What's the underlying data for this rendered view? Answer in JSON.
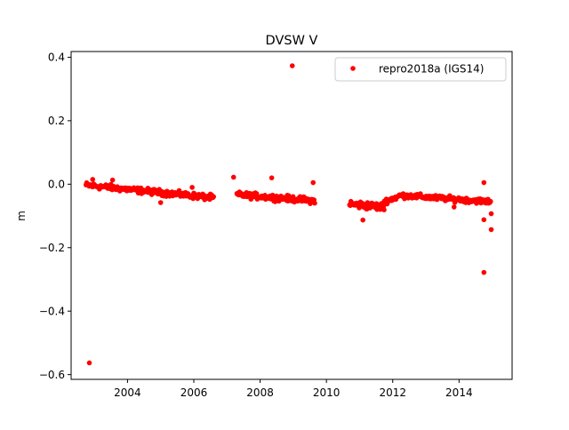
{
  "chart_data": {
    "type": "scatter",
    "title": "DVSW V",
    "xlabel": "",
    "ylabel": "m",
    "xlim": [
      2002.3,
      2015.6
    ],
    "ylim": [
      -0.615,
      0.418
    ],
    "xticks": [
      2004,
      2006,
      2008,
      2010,
      2012,
      2014
    ],
    "xtick_labels": [
      "2004",
      "2006",
      "2008",
      "2010",
      "2012",
      "2014"
    ],
    "yticks": [
      -0.6,
      -0.4,
      -0.2,
      0.0,
      0.2,
      0.4
    ],
    "ytick_labels": [
      "−0.6",
      "−0.4",
      "−0.2",
      "0.0",
      "0.2",
      "0.4"
    ],
    "grid": false,
    "legend_position": "top-right",
    "series": [
      {
        "name": "repro2018a (IGS14)",
        "color": "#ff0000",
        "marker": "circle",
        "segments": [
          {
            "x_start": 2002.75,
            "x_end": 2006.6,
            "y_start": -0.003,
            "y_end": -0.043,
            "spread": 0.009
          },
          {
            "x_start": 2007.3,
            "x_end": 2009.65,
            "y_start": -0.033,
            "y_end": -0.052,
            "spread": 0.009
          },
          {
            "x_start": 2010.7,
            "x_end": 2011.75,
            "y_start": -0.063,
            "y_end": -0.072,
            "spread": 0.012
          },
          {
            "x_start": 2011.75,
            "x_end": 2012.2,
            "y_start": -0.055,
            "y_end": -0.038,
            "spread": 0.008
          },
          {
            "x_start": 2012.2,
            "x_end": 2014.95,
            "y_start": -0.035,
            "y_end": -0.055,
            "spread": 0.008
          }
        ],
        "outliers": [
          {
            "x": 2002.85,
            "y": -0.563
          },
          {
            "x": 2008.97,
            "y": 0.373
          },
          {
            "x": 2007.2,
            "y": 0.022
          },
          {
            "x": 2008.35,
            "y": 0.02
          },
          {
            "x": 2009.6,
            "y": 0.005
          },
          {
            "x": 2005.95,
            "y": -0.01
          },
          {
            "x": 2011.1,
            "y": -0.113
          },
          {
            "x": 2014.75,
            "y": 0.005
          },
          {
            "x": 2014.75,
            "y": -0.112
          },
          {
            "x": 2014.75,
            "y": -0.278
          },
          {
            "x": 2014.97,
            "y": -0.093
          },
          {
            "x": 2014.97,
            "y": -0.143
          },
          {
            "x": 2013.85,
            "y": -0.072
          },
          {
            "x": 2005.0,
            "y": -0.058
          },
          {
            "x": 2003.55,
            "y": 0.013
          },
          {
            "x": 2002.95,
            "y": 0.015
          }
        ]
      }
    ]
  }
}
